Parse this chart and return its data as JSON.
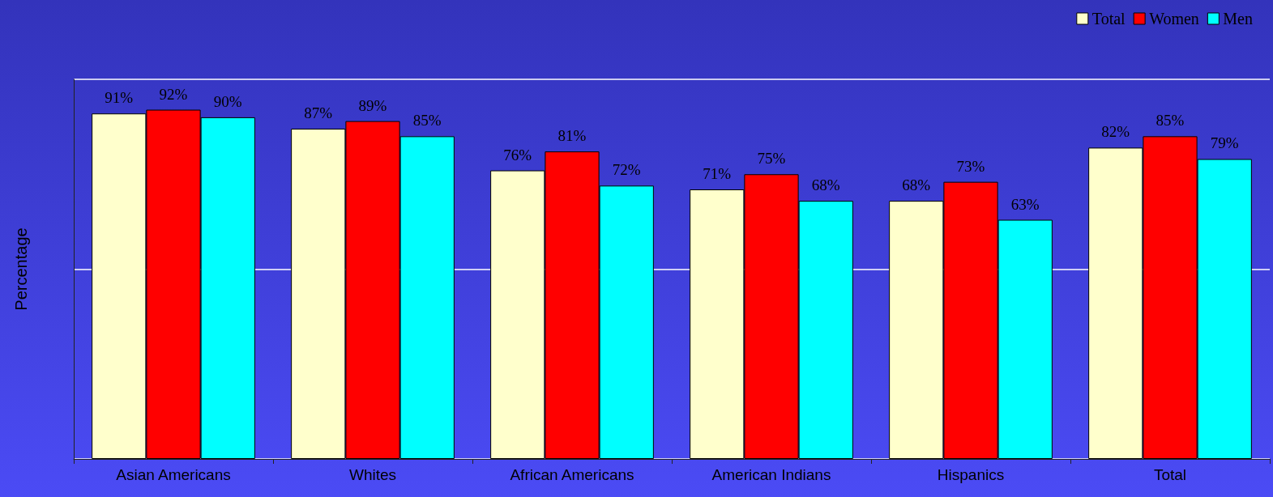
{
  "chart_data": {
    "type": "bar",
    "ylabel": "Percentage",
    "categories": [
      "Asian Americans",
      "Whites",
      "African Americans",
      "American Indians",
      "Hispanics",
      "Total"
    ],
    "series": [
      {
        "name": "Total",
        "color": "#ffffcc",
        "values": [
          91,
          87,
          76,
          71,
          68,
          82
        ],
        "value_labels": [
          "91%",
          "87%",
          "76%",
          "71%",
          "68%",
          "82%"
        ]
      },
      {
        "name": "Women",
        "color": "#ff0000",
        "values": [
          92,
          89,
          81,
          75,
          73,
          85
        ],
        "value_labels": [
          "92%",
          "89%",
          "81%",
          "75%",
          "73%",
          "85%"
        ]
      },
      {
        "name": "Men",
        "color": "#00ffff",
        "values": [
          90,
          85,
          72,
          68,
          63,
          79
        ],
        "value_labels": [
          "90%",
          "85%",
          "72%",
          "68%",
          "63%",
          "79%"
        ]
      }
    ],
    "ylim": [
      0,
      100
    ],
    "yticks": [
      {
        "value": 0,
        "label": null
      },
      {
        "value": 50,
        "label": null
      },
      {
        "value": 100,
        "label": null
      }
    ],
    "tick_labels": "x",
    "grid": "y",
    "legend": "top right"
  }
}
